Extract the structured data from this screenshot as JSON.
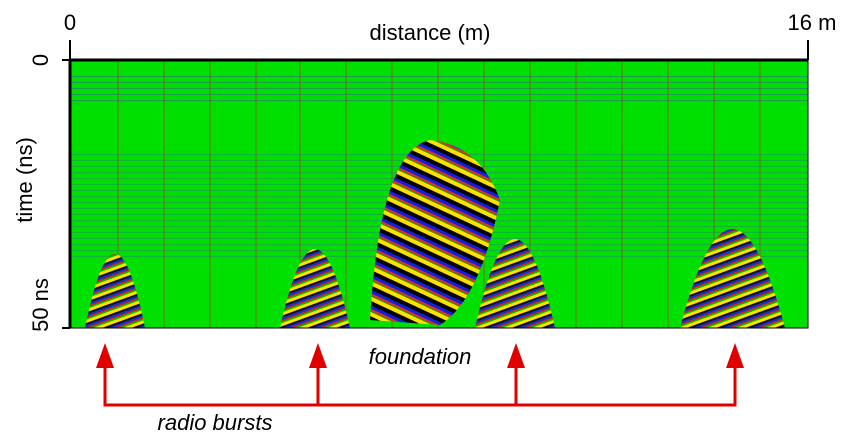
{
  "x_axis": {
    "label": "distance (m)",
    "ticks": [
      "0",
      "16 m"
    ]
  },
  "y_axis": {
    "label": "time (ns)",
    "ticks": [
      "0",
      "50 ns"
    ]
  },
  "annotations": {
    "structure": "foundation",
    "bursts": "radio bursts"
  }
}
